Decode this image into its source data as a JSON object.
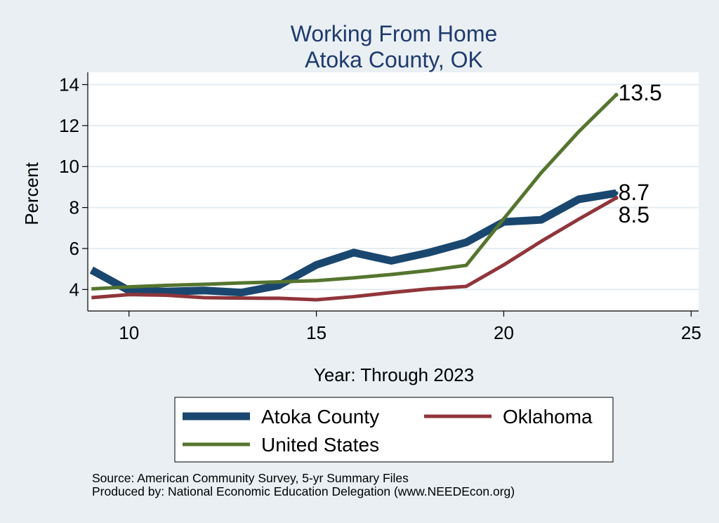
{
  "chart_data": {
    "type": "line",
    "title": [
      "Working From Home",
      "Atoka County, OK"
    ],
    "xlabel": "Year: Through 2023",
    "ylabel": "Percent",
    "xlim": [
      8.9,
      25.2
    ],
    "ylim": [
      2.95,
      14.6
    ],
    "xticks": [
      10,
      15,
      20,
      25
    ],
    "yticks": [
      4,
      6,
      8,
      10,
      12,
      14
    ],
    "grid": "horizontal",
    "legend_position": "bottom",
    "series": [
      {
        "name": "Atoka County",
        "color": "#1a476f",
        "width": 11,
        "x": [
          9,
          10,
          11,
          12,
          13,
          14,
          15,
          16,
          17,
          18,
          19,
          20,
          21,
          22,
          23
        ],
        "y": [
          4.95,
          3.95,
          3.9,
          3.95,
          3.85,
          4.2,
          5.2,
          5.8,
          5.4,
          5.8,
          6.3,
          7.3,
          7.4,
          8.4,
          8.7
        ],
        "end_label": "8.7"
      },
      {
        "name": "Oklahoma",
        "color": "#90353b",
        "width": 5,
        "x": [
          9,
          10,
          11,
          12,
          13,
          14,
          15,
          16,
          17,
          18,
          19,
          20,
          21,
          22,
          23
        ],
        "y": [
          3.6,
          3.75,
          3.72,
          3.6,
          3.58,
          3.57,
          3.5,
          3.65,
          3.85,
          4.03,
          4.15,
          5.2,
          6.35,
          7.43,
          8.47
        ],
        "end_label": "8.5"
      },
      {
        "name": "United States",
        "color": "#55752f",
        "width": 5,
        "x": [
          9,
          10,
          11,
          12,
          13,
          14,
          15,
          16,
          17,
          18,
          19,
          20,
          21,
          22,
          23
        ],
        "y": [
          4.03,
          4.13,
          4.2,
          4.25,
          4.32,
          4.37,
          4.43,
          4.57,
          4.73,
          4.93,
          5.18,
          7.45,
          9.7,
          11.7,
          13.5
        ],
        "end_label": "13.5"
      }
    ]
  },
  "footer": {
    "source": "Source: American Community Survey, 5-yr Summary Files",
    "produced_by": "Produced by: National Economic Education Delegation (www.NEEDEcon.org)"
  }
}
